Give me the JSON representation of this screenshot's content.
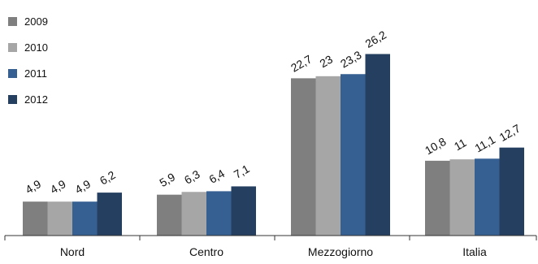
{
  "chart_data": {
    "type": "bar",
    "categories": [
      "Nord",
      "Centro",
      "Mezzogiorno",
      "Italia"
    ],
    "series": [
      {
        "name": "2009",
        "color": "#7f7f7f",
        "values": [
          4.9,
          5.9,
          22.7,
          10.8
        ],
        "labels": [
          "4,9",
          "5,9",
          "22,7",
          "10,8"
        ]
      },
      {
        "name": "2010",
        "color": "#a6a6a6",
        "values": [
          4.9,
          6.3,
          23,
          11
        ],
        "labels": [
          "4,9",
          "6,3",
          "23",
          "11"
        ]
      },
      {
        "name": "2011",
        "color": "#376092",
        "values": [
          4.9,
          6.4,
          23.3,
          11.1
        ],
        "labels": [
          "4,9",
          "6,4",
          "23,3",
          "11,1"
        ]
      },
      {
        "name": "2012",
        "color": "#243f60",
        "values": [
          6.2,
          7.1,
          26.2,
          12.7
        ],
        "labels": [
          "6,2",
          "7,1",
          "26,2",
          "12,7"
        ]
      }
    ],
    "ylim": [
      0,
      30
    ],
    "legend_position": "top-left",
    "grid": false
  }
}
